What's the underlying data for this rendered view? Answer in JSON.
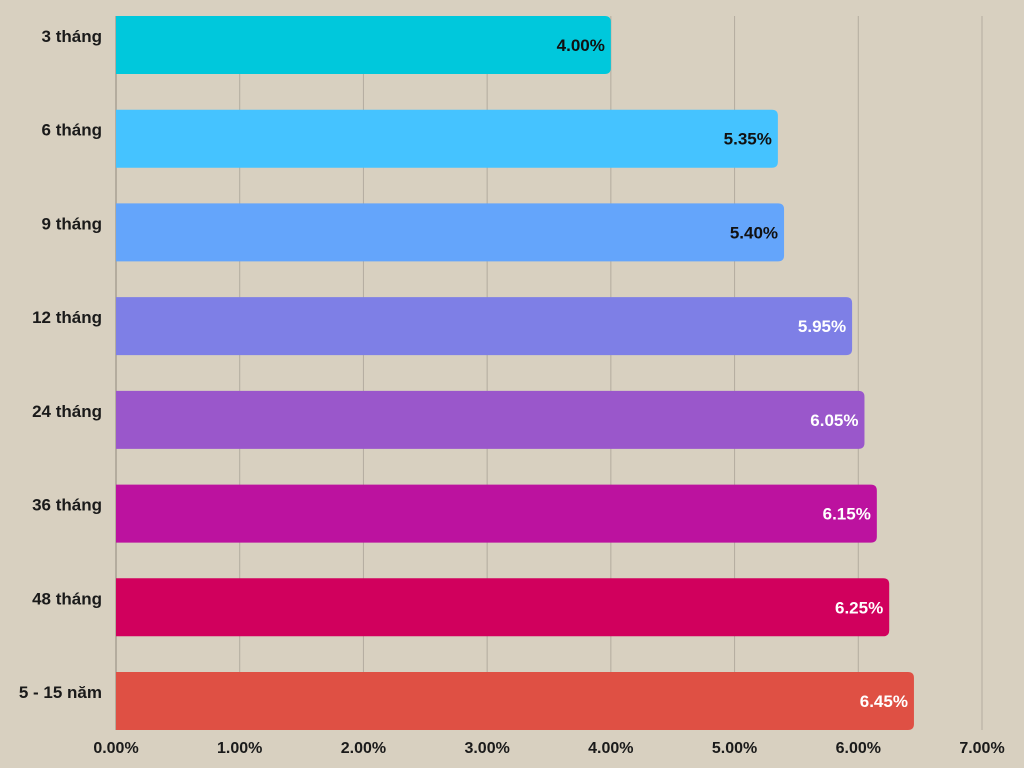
{
  "chart_data": {
    "type": "bar",
    "orientation": "horizontal",
    "categories": [
      "3 tháng",
      "6 tháng",
      "9 tháng",
      "12 tháng",
      "24 tháng",
      "36 tháng",
      "48 tháng",
      "5 - 15 năm"
    ],
    "values": [
      4.0,
      5.35,
      5.4,
      5.95,
      6.05,
      6.15,
      6.25,
      6.45
    ],
    "value_labels": [
      "4.00%",
      "5.35%",
      "5.40%",
      "5.95%",
      "6.05%",
      "6.15%",
      "6.25%",
      "6.45%"
    ],
    "bar_colors": [
      "#00c8dc",
      "#45c3ff",
      "#64a5fb",
      "#7e7fe6",
      "#9a57cb",
      "#bc129f",
      "#d1005d",
      "#df5044"
    ],
    "label_colors": [
      "#111111",
      "#111111",
      "#111111",
      "#ffffff",
      "#ffffff",
      "#ffffff",
      "#ffffff",
      "#ffffff"
    ],
    "xlim": [
      0,
      7
    ],
    "x_ticks": [
      0,
      1,
      2,
      3,
      4,
      5,
      6,
      7
    ],
    "x_tick_labels": [
      "0.00%",
      "1.00%",
      "2.00%",
      "3.00%",
      "4.00%",
      "5.00%",
      "6.00%",
      "7.00%"
    ],
    "grid": true,
    "background": "#d8d0c0",
    "grid_color": "#b3ac9f",
    "title": "",
    "xlabel": "",
    "ylabel": ""
  }
}
